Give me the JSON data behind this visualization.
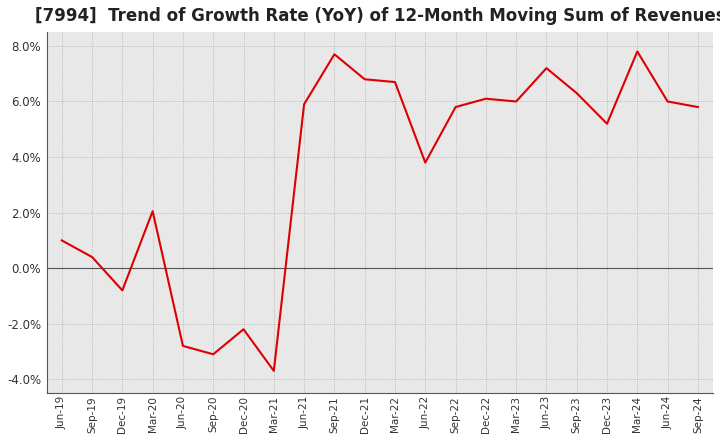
{
  "title": "[7994]  Trend of Growth Rate (YoY) of 12-Month Moving Sum of Revenues",
  "title_fontsize": 12,
  "x_labels": [
    "Jun-19",
    "Sep-19",
    "Dec-19",
    "Mar-20",
    "Jun-20",
    "Sep-20",
    "Dec-20",
    "Mar-21",
    "Jun-21",
    "Sep-21",
    "Dec-21",
    "Mar-22",
    "Jun-22",
    "Sep-22",
    "Dec-22",
    "Mar-23",
    "Jun-23",
    "Sep-23",
    "Dec-23",
    "Mar-24",
    "Jun-24",
    "Sep-24"
  ],
  "values": [
    1.0,
    0.4,
    -0.8,
    2.05,
    -2.8,
    -3.1,
    -2.2,
    -3.7,
    5.9,
    7.7,
    6.8,
    6.7,
    3.8,
    5.8,
    6.1,
    6.0,
    7.2,
    6.3,
    5.2,
    7.8,
    6.0,
    5.8
  ],
  "line_color": "#dd0000",
  "line_width": 1.5,
  "grid_color": "#aaaaaa",
  "background_color": "#ffffff",
  "plot_bg_color": "#e8e8e8",
  "ylim": [
    -4.5,
    8.5
  ],
  "yticks": [
    -4.0,
    -2.0,
    0.0,
    2.0,
    4.0,
    6.0,
    8.0
  ],
  "zero_line_color": "#555555",
  "spine_color": "#555555"
}
